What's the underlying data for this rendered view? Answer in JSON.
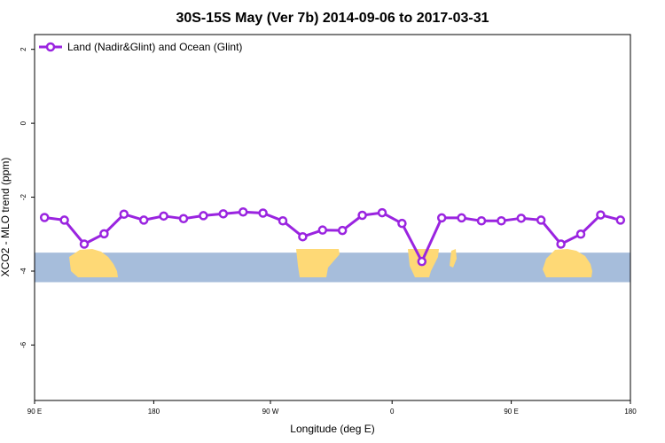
{
  "chart_data": {
    "type": "line",
    "title": "30S-15S May (Ver 7b)   2014-09-06 to 2017-03-31",
    "xlabel": "Longitude (deg E)",
    "ylabel": "XCO2 - MLO trend (ppm)",
    "xlim": [
      90,
      450
    ],
    "ylim": [
      -7.5,
      2.4
    ],
    "x_ticks": [
      {
        "value": 90,
        "label": "90 E"
      },
      {
        "value": 162,
        "label": "180"
      },
      {
        "value": 232.5,
        "label": "90 W"
      },
      {
        "value": 306,
        "label": "0"
      },
      {
        "value": 378,
        "label": "90 E"
      },
      {
        "value": 450,
        "label": "180"
      }
    ],
    "y_ticks": [
      {
        "value": 2,
        "label": "2"
      },
      {
        "value": 0,
        "label": "0"
      },
      {
        "value": -2,
        "label": "-2"
      },
      {
        "value": -4,
        "label": "-4"
      },
      {
        "value": -6,
        "label": "-6"
      }
    ],
    "grid": false,
    "legend": {
      "position": "top-left",
      "entries": [
        "Land (Nadir&Glint) and Ocean (Glint)"
      ]
    },
    "map_band": {
      "y_range": [
        -4.3,
        -3.5
      ],
      "ocean_color": "#a6bddb",
      "land_color": "#fed976"
    },
    "series": [
      {
        "name": "Land (Nadir&Glint) and Ocean (Glint)",
        "color": "#9a24e0",
        "x": [
          96,
          108,
          120,
          132,
          144,
          156,
          168,
          180,
          192,
          204,
          216,
          228,
          240,
          252,
          264,
          276,
          288,
          300,
          312,
          324,
          336,
          348,
          360,
          372,
          384,
          396,
          408,
          420,
          432,
          444
        ],
        "y": [
          -2.55,
          -2.62,
          -3.27,
          -2.99,
          -2.46,
          -2.62,
          -2.51,
          -2.58,
          -2.5,
          -2.45,
          -2.4,
          -2.43,
          -2.64,
          -3.07,
          -2.89,
          -2.9,
          -2.49,
          -2.42,
          -2.71,
          -3.74,
          -2.56,
          -2.56,
          -2.64,
          -2.64,
          -2.57,
          -2.62,
          -3.27,
          -3.0,
          -2.48,
          -2.62
        ]
      }
    ]
  }
}
